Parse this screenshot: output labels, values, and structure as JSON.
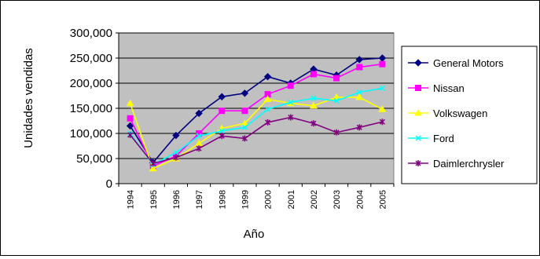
{
  "chart_data": {
    "type": "line",
    "title": "",
    "xlabel": "Año",
    "ylabel": "Unidades vendidas",
    "ylim": [
      0,
      300000
    ],
    "y_ticks": [
      "0",
      "50,000",
      "100,000",
      "150,000",
      "200,000",
      "250,000",
      "300,000"
    ],
    "y_tick_values": [
      0,
      50000,
      100000,
      150000,
      200000,
      250000,
      300000
    ],
    "categories": [
      "1994",
      "1995",
      "1996",
      "1997",
      "1998",
      "1999",
      "2000",
      "2001",
      "2002",
      "2003",
      "2004",
      "2005"
    ],
    "grid": "horizontal",
    "plot_background": "#c0c0c0",
    "legend_position": "right",
    "series": [
      {
        "name": "General Motors",
        "color": "#000080",
        "marker": "diamond",
        "values": [
          115000,
          42000,
          96000,
          140000,
          173000,
          180000,
          213000,
          200000,
          228000,
          216000,
          247000,
          250000
        ]
      },
      {
        "name": "Nissan",
        "color": "#ff00ff",
        "marker": "square",
        "values": [
          130000,
          35000,
          55000,
          100000,
          145000,
          145000,
          178000,
          195000,
          218000,
          210000,
          232000,
          238000
        ]
      },
      {
        "name": "Volkswagen",
        "color": "#ffff00",
        "marker": "triangle",
        "values": [
          160000,
          30000,
          50000,
          80000,
          110000,
          120000,
          168000,
          160000,
          155000,
          172000,
          172000,
          148000
        ]
      },
      {
        "name": "Ford",
        "color": "#00ffff",
        "marker": "x",
        "values": [
          100000,
          38000,
          62000,
          95000,
          105000,
          112000,
          148000,
          162000,
          170000,
          165000,
          182000,
          190000
        ]
      },
      {
        "name": "Daimlerchrysler",
        "color": "#800080",
        "marker": "star",
        "values": [
          97000,
          40000,
          52000,
          70000,
          95000,
          90000,
          122000,
          132000,
          120000,
          102000,
          112000,
          123000
        ]
      }
    ]
  }
}
